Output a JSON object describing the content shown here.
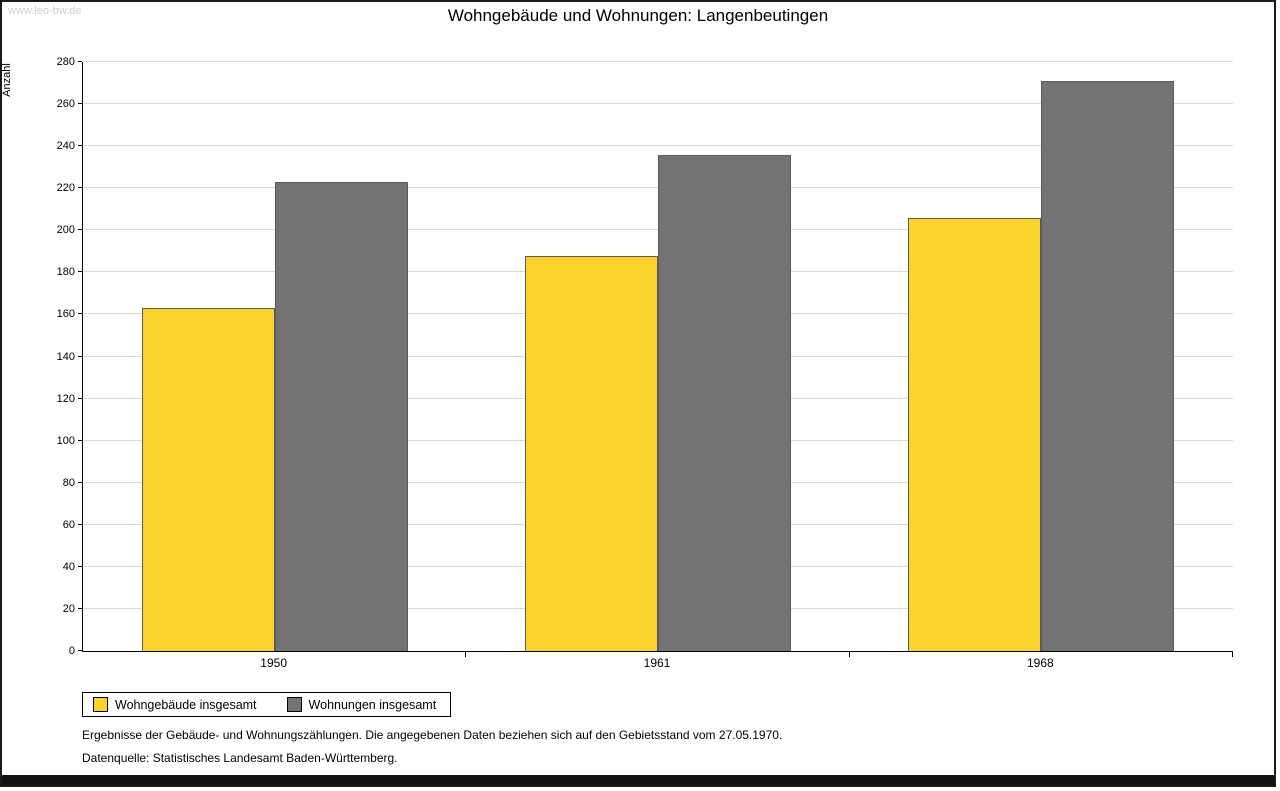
{
  "watermark": "www.leo-bw.de",
  "chart_data": {
    "type": "bar",
    "title": "Wohngebäude und Wohnungen: Langenbeutingen",
    "xlabel": "",
    "ylabel": "Anzahl",
    "categories": [
      "1950",
      "1961",
      "1968"
    ],
    "series": [
      {
        "name": "Wohngebäude insgesamt",
        "color": "#fcd32d",
        "values": [
          163,
          188,
          206
        ]
      },
      {
        "name": "Wohnungen insgesamt",
        "color": "#737373",
        "values": [
          223,
          236,
          271
        ]
      }
    ],
    "ylim": [
      0,
      280
    ],
    "yticks": [
      0,
      20,
      40,
      60,
      80,
      100,
      120,
      140,
      160,
      180,
      200,
      220,
      240,
      260,
      280
    ],
    "grid": "horizontal",
    "legend_position": "bottom-left"
  },
  "footnotes": [
    "Ergebnisse der Gebäude- und Wohnungszählungen. Die angegebenen Daten beziehen sich auf den Gebietsstand vom 27.05.1970.",
    "Datenquelle: Statistisches Landesamt Baden-Württemberg."
  ]
}
